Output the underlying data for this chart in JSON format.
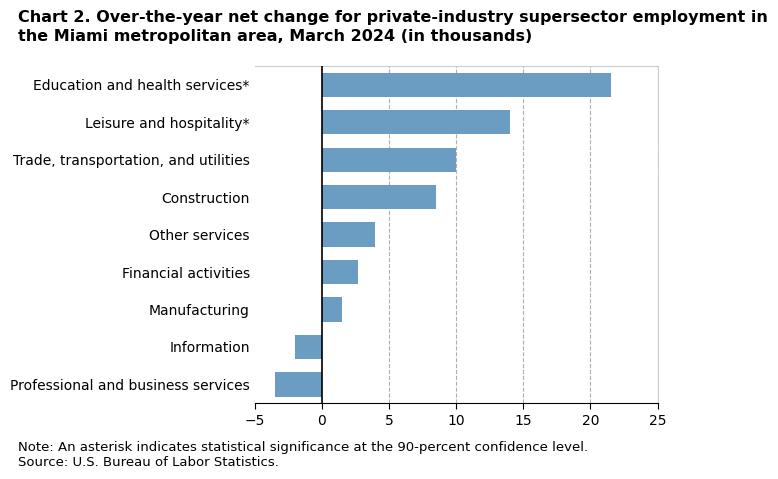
{
  "title_line1": "Chart 2. Over-the-year net change for private-industry supersector employment in",
  "title_line2": "the Miami metropolitan area, March 2024 (in thousands)",
  "categories": [
    "Professional and business services",
    "Information",
    "Manufacturing",
    "Financial activities",
    "Other services",
    "Construction",
    "Trade, transportation, and utilities",
    "Leisure and hospitality*",
    "Education and health services*"
  ],
  "values": [
    -3.5,
    -2.0,
    1.5,
    2.7,
    4.0,
    8.5,
    10.0,
    14.0,
    21.5
  ],
  "bar_color": "#6b9dc2",
  "xlim": [
    -5,
    25
  ],
  "xticks": [
    -5,
    0,
    5,
    10,
    15,
    20,
    25
  ],
  "dashed_gridlines": [
    5,
    10,
    15,
    20,
    25
  ],
  "grid_color": "#b0b0b0",
  "note_line1": "Note: An asterisk indicates statistical significance at the 90-percent confidence level.",
  "note_line2": "Source: U.S. Bureau of Labor Statistics.",
  "title_fontsize": 11.5,
  "label_fontsize": 10,
  "tick_fontsize": 10,
  "note_fontsize": 9.5
}
